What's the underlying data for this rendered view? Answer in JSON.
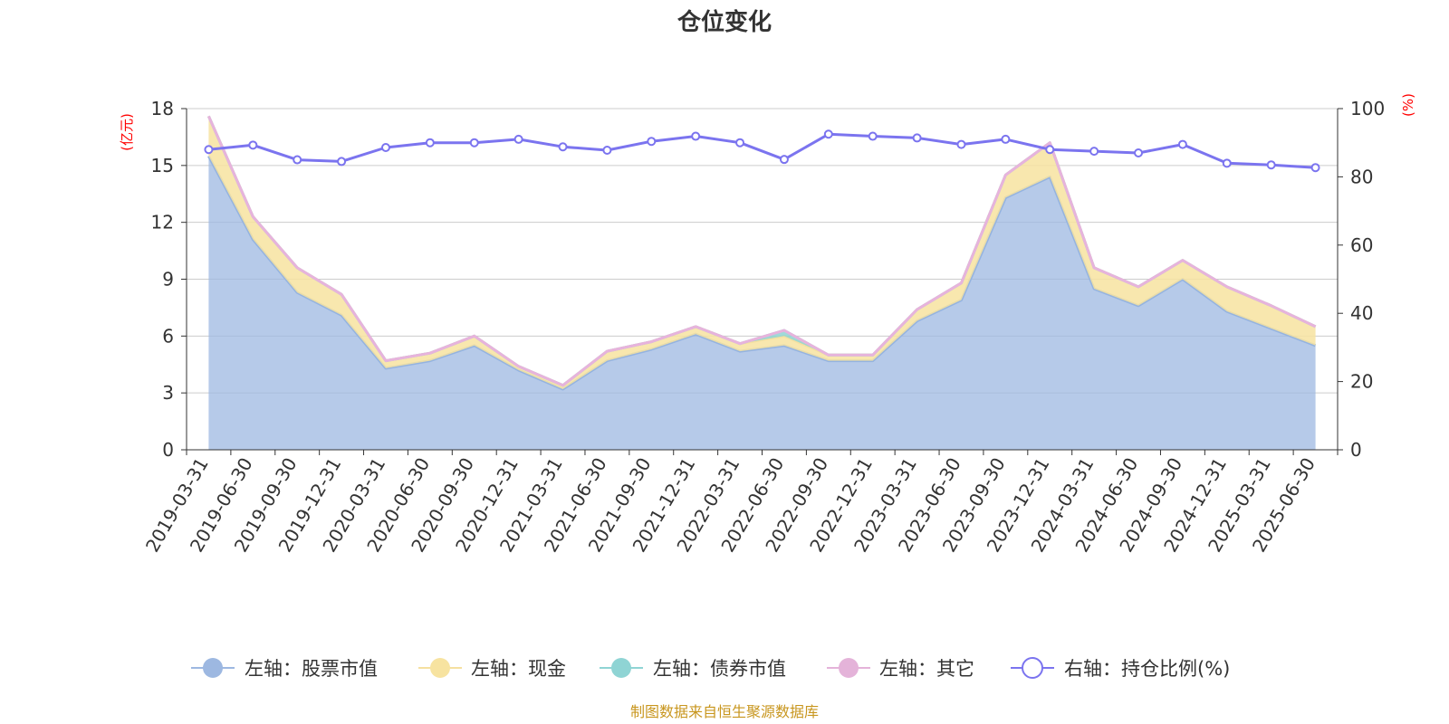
{
  "chart_data": {
    "type": "area",
    "title": "仓位变化",
    "left_axis_unit": "(亿元)",
    "right_axis_unit": "(%)",
    "x": [
      "2019-03-31",
      "2019-06-30",
      "2019-09-30",
      "2019-12-31",
      "2020-03-31",
      "2020-06-30",
      "2020-09-30",
      "2020-12-31",
      "2021-03-31",
      "2021-06-30",
      "2021-09-30",
      "2021-12-31",
      "2022-03-31",
      "2022-06-30",
      "2022-09-30",
      "2022-12-31",
      "2023-03-31",
      "2023-06-30",
      "2023-09-30",
      "2023-12-31",
      "2024-03-31",
      "2024-06-30",
      "2024-09-30",
      "2024-12-31",
      "2025-03-31",
      "2025-06-30"
    ],
    "left_ylim": [
      0,
      18
    ],
    "left_ticks": [
      0,
      3,
      6,
      9,
      12,
      15,
      18
    ],
    "right_ylim": [
      0,
      100
    ],
    "right_ticks": [
      0,
      20,
      40,
      60,
      80,
      100
    ],
    "grid": true,
    "legend_position": "bottom",
    "series": [
      {
        "name": "左轴：股票市值",
        "axis": "left",
        "stack": true,
        "color": "#9db8e1",
        "values": [
          15.5,
          11.1,
          8.3,
          7.1,
          4.3,
          4.7,
          5.5,
          4.2,
          3.2,
          4.7,
          5.3,
          6.1,
          5.2,
          5.5,
          4.7,
          4.7,
          6.8,
          7.9,
          13.3,
          14.4,
          8.5,
          7.6,
          9.0,
          7.3,
          6.4,
          5.5
        ]
      },
      {
        "name": "左轴：现金",
        "axis": "left",
        "stack": true,
        "color": "#f7e3a0",
        "values": [
          2.1,
          1.2,
          1.3,
          1.1,
          0.4,
          0.4,
          0.5,
          0.2,
          0.2,
          0.5,
          0.4,
          0.4,
          0.4,
          0.5,
          0.3,
          0.3,
          0.6,
          0.9,
          1.2,
          1.8,
          1.1,
          1.0,
          1.0,
          1.3,
          1.2,
          1.0
        ]
      },
      {
        "name": "左轴：债券市值",
        "axis": "left",
        "stack": true,
        "color": "#8fd4d4",
        "values": [
          0,
          0,
          0,
          0,
          0,
          0,
          0,
          0,
          0,
          0,
          0,
          0,
          0,
          0.3,
          0,
          0,
          0,
          0,
          0,
          0,
          0,
          0,
          0,
          0,
          0,
          0
        ]
      },
      {
        "name": "左轴：其它",
        "axis": "left",
        "stack": true,
        "color": "#e4b3d9",
        "values": [
          0,
          0,
          0,
          0,
          0,
          0,
          0,
          0,
          0,
          0,
          0,
          0,
          0,
          0,
          0,
          0,
          0,
          0,
          0,
          0,
          0,
          0,
          0,
          0,
          0,
          0
        ]
      },
      {
        "name": "右轴：持仓比例(%)",
        "axis": "right",
        "type": "line",
        "color": "#7b74ef",
        "values": [
          88.0,
          89.3,
          85.0,
          84.5,
          88.6,
          90.0,
          90.0,
          91.0,
          88.8,
          87.8,
          90.4,
          91.9,
          90.0,
          85.1,
          92.5,
          91.9,
          91.4,
          89.5,
          91.0,
          88.0,
          87.5,
          87.0,
          89.5,
          84.0,
          83.5,
          82.7
        ]
      }
    ]
  },
  "source_text": "制图数据来自恒生聚源数据库"
}
